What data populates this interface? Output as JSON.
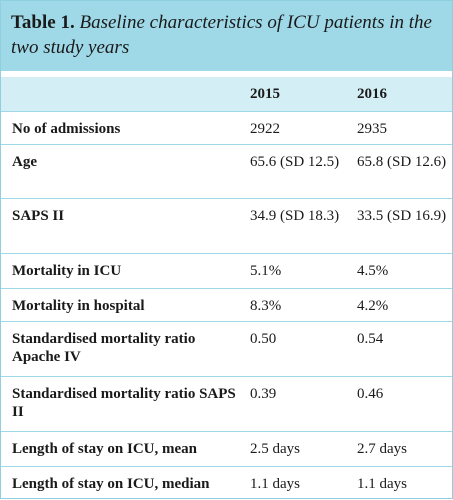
{
  "header": {
    "label": "Table 1.",
    "title": "Baseline characteristics of ICU patients in the two study years"
  },
  "table": {
    "columns": [
      "2015",
      "2016"
    ],
    "rows": [
      [
        "No of admissions",
        "2922",
        "2935"
      ],
      [
        "Age",
        "65.6 (SD 12.5)",
        "65.8 (SD 12.6)"
      ],
      [
        "SAPS II",
        "34.9 (SD 18.3)",
        "33.5 (SD 16.9)"
      ],
      [
        "Mortality in ICU",
        "5.1%",
        "4.5%"
      ],
      [
        "Mortality in hospital",
        "8.3%",
        "4.2%"
      ],
      [
        "Standardised mortality ratio Apache IV",
        "0.50",
        "0.54"
      ],
      [
        "Standardised mortality ratio SAPS II",
        "0.39",
        "0.46"
      ],
      [
        "Length of stay on ICU, mean",
        "2.5 days",
        "2.7 days"
      ],
      [
        "Length of stay on ICU, median",
        "1.1 days",
        "1.1 days"
      ]
    ]
  }
}
